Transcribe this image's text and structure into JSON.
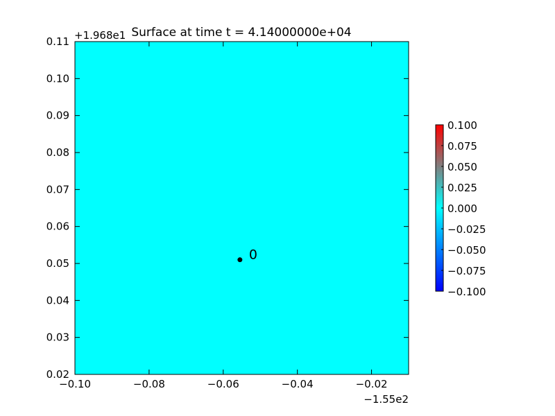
{
  "chart_data": {
    "type": "heatmap",
    "title": "Surface at time t = 4.14000000e+04",
    "xlabel": "",
    "ylabel": "",
    "xlim": [
      -0.1,
      -0.01
    ],
    "ylim": [
      0.02,
      0.11
    ],
    "x_offset_label": "−1.55e2",
    "y_offset_label": "+1.968e1",
    "x_ticks": [
      -0.1,
      -0.08,
      -0.06,
      -0.04,
      -0.02
    ],
    "x_tick_labels": [
      "−0.10",
      "−0.08",
      "−0.06",
      "−0.04",
      "−0.02"
    ],
    "y_ticks": [
      0.02,
      0.03,
      0.04,
      0.05,
      0.06,
      0.07,
      0.08,
      0.09,
      0.1,
      0.11
    ],
    "y_tick_labels": [
      "0.02",
      "0.03",
      "0.04",
      "0.05",
      "0.06",
      "0.07",
      "0.08",
      "0.09",
      "0.10",
      "0.11"
    ],
    "surface_value": 0.0,
    "surface_color": "#00ffff",
    "gauges": [
      {
        "label": "0",
        "x": -0.0555,
        "y": 0.051
      }
    ],
    "colorbar": {
      "range": [
        -0.1,
        0.1
      ],
      "ticks": [
        0.1,
        0.075,
        0.05,
        0.025,
        0.0,
        -0.025,
        -0.05,
        -0.075,
        -0.1
      ],
      "tick_labels": [
        "0.100",
        "0.075",
        "0.050",
        "0.025",
        "0.000",
        "−0.025",
        "−0.050",
        "−0.075",
        "−0.100"
      ],
      "colors": [
        "#0000ff",
        "#00ffff",
        "#ff0000"
      ]
    },
    "grid": false
  }
}
